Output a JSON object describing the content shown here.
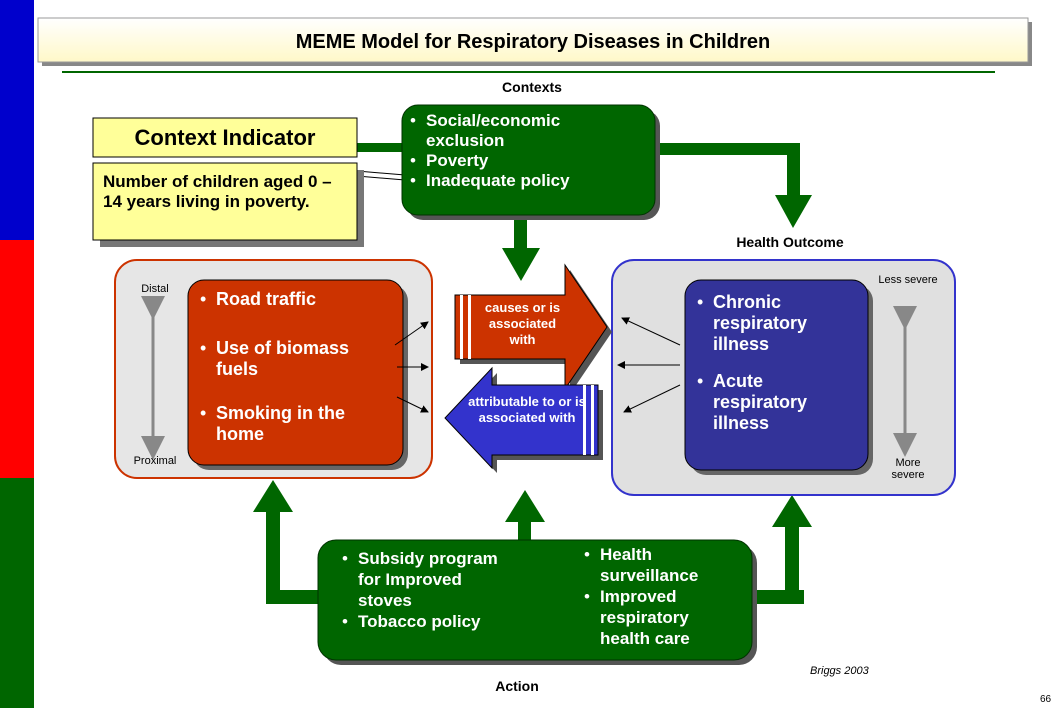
{
  "title": "MEME Model for Respiratory Diseases in Children",
  "contexts": {
    "label": "Contexts",
    "items": [
      "Social/economic exclusion",
      "Poverty",
      "Inadequate policy"
    ]
  },
  "context_indicator": {
    "label": "Context Indicator",
    "text": "Number of children aged 0 – 14 years living in poverty."
  },
  "exposures": {
    "distal": "Distal",
    "proximal": "Proximal",
    "items": [
      "Road traffic",
      "Use of biomass fuels",
      "Smoking in the home"
    ]
  },
  "links": {
    "forward": "causes or is associated with",
    "backward": "attributable to or is associated with"
  },
  "health_outcome": {
    "label": "Health Outcome",
    "less": "Less severe",
    "more": "More severe",
    "items": [
      "Chronic respiratory illness",
      "Acute respiratory illness"
    ]
  },
  "action": {
    "label": "Action",
    "left": [
      "Subsidy program for Improved stoves",
      "Tobacco policy"
    ],
    "right": [
      "Health surveillance",
      "Improved respiratory health care"
    ]
  },
  "source": "Briggs 2003",
  "page": "66"
}
